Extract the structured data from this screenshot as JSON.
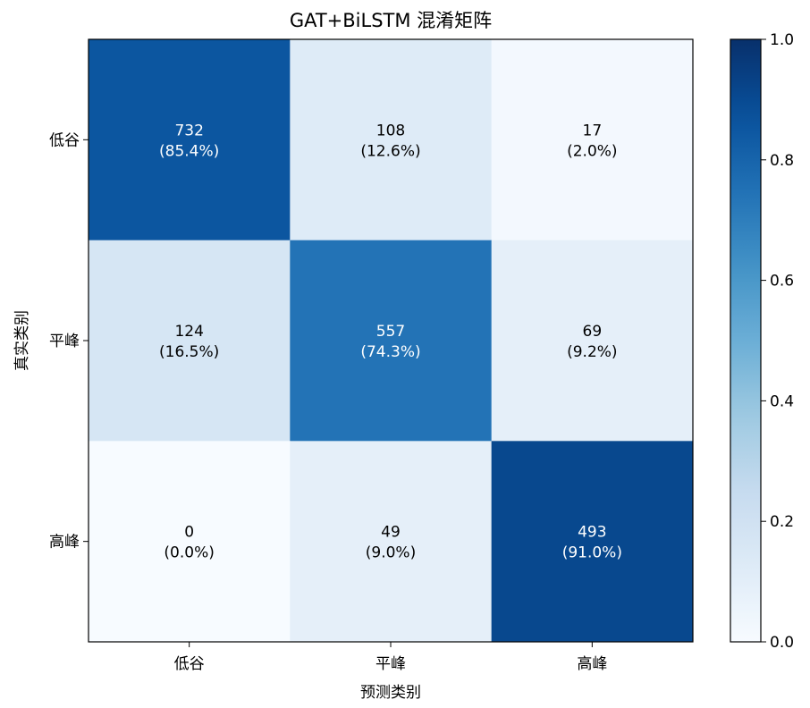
{
  "chart_data": {
    "type": "heatmap",
    "title": "GAT+BiLSTM 混淆矩阵",
    "xlabel": "预测类别",
    "ylabel": "真实类别",
    "x_categories": [
      "低谷",
      "平峰",
      "高峰"
    ],
    "y_categories": [
      "低谷",
      "平峰",
      "高峰"
    ],
    "counts": [
      [
        732,
        108,
        17
      ],
      [
        124,
        557,
        69
      ],
      [
        0,
        49,
        493
      ]
    ],
    "percent_labels": [
      [
        "(85.4%)",
        "(12.6%)",
        "(2.0%)"
      ],
      [
        "(16.5%)",
        "(74.3%)",
        "(9.2%)"
      ],
      [
        "(0.0%)",
        "(9.0%)",
        "(91.0%)"
      ]
    ],
    "row_fractions": [
      [
        0.854,
        0.126,
        0.02
      ],
      [
        0.165,
        0.743,
        0.092
      ],
      [
        0.0,
        0.09,
        0.91
      ]
    ],
    "colormap": "Blues",
    "colorbar": {
      "range": [
        0.0,
        1.0
      ],
      "ticks": [
        "0.0",
        "0.2",
        "0.4",
        "0.6",
        "0.8",
        "1.0"
      ],
      "tick_values": [
        0.0,
        0.2,
        0.4,
        0.6,
        0.8,
        1.0
      ]
    },
    "grid": false
  }
}
